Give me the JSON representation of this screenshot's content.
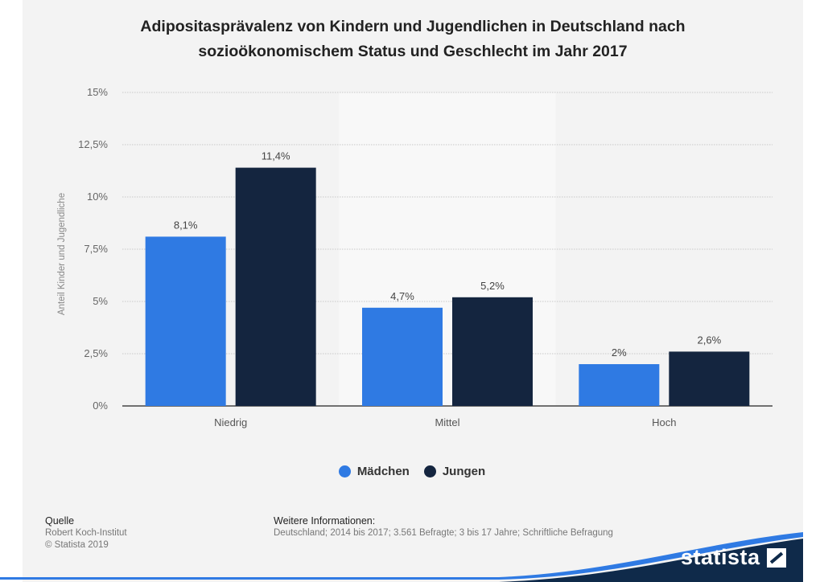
{
  "chart_data": {
    "type": "bar",
    "title_lines": [
      "Adipositasprävalenz von Kindern und Jugendlichen in Deutschland nach",
      "sozioökonomischem Status und Geschlecht im Jahr 2017"
    ],
    "categories": [
      "Niedrig",
      "Mittel",
      "Hoch"
    ],
    "series": [
      {
        "name": "Mädchen",
        "values": [
          8.1,
          4.7,
          2.0
        ],
        "labels": [
          "8,1%",
          "4,7%",
          "2%"
        ],
        "color": "#2f7ae3"
      },
      {
        "name": "Jungen",
        "values": [
          11.4,
          5.2,
          2.6
        ],
        "labels": [
          "11,4%",
          "5,2%",
          "2,6%"
        ],
        "color": "#14253f"
      }
    ],
    "ylabel": "Anteil Kinder und Jugendliche",
    "ylim": [
      0,
      15
    ],
    "yticks": [
      0,
      2.5,
      5,
      7.5,
      10,
      12.5,
      15
    ],
    "ytick_labels": [
      "0%",
      "2,5%",
      "5%",
      "7,5%",
      "10%",
      "12,5%",
      "15%"
    ],
    "grid": true,
    "legend_position": "bottom"
  },
  "source": {
    "heading": "Quelle",
    "line1": "Robert Koch-Institut",
    "line2": "© Statista 2019"
  },
  "info": {
    "heading": "Weitere Informationen:",
    "text": "Deutschland; 2014 bis 2017; 3.561 Befragte; 3 bis 17 Jahre; Schriftliche Befragung"
  },
  "brand": "statista",
  "colors": {
    "panel_bg": "#f3f3f3",
    "highlight_bg": "#f8f8f8",
    "brand_blue": "#0f2a4a",
    "swoosh_blue": "#2f7ae3"
  }
}
